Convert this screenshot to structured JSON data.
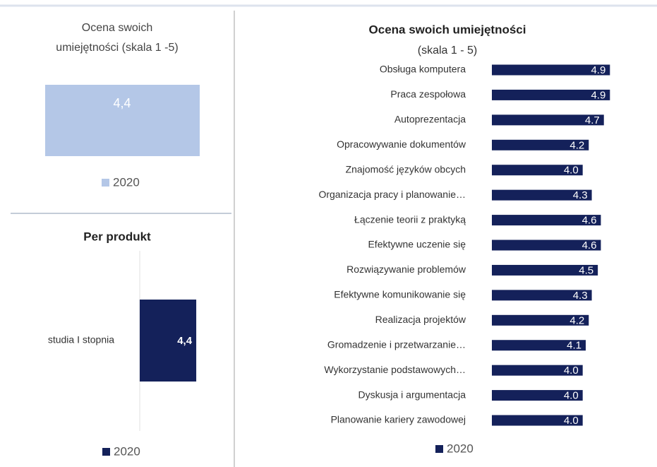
{
  "chart_data": [
    {
      "type": "card",
      "title": "Ocena swoich\numiejętności (skala 1   -5)",
      "series": [
        {
          "name": "2020",
          "color": "#b4c7e7",
          "values": [
            4.4
          ],
          "value_labels": [
            "4,4"
          ]
        }
      ]
    },
    {
      "type": "barh",
      "title": "Per produkt",
      "categories": [
        "studia I stopnia"
      ],
      "xlim": [
        0,
        5
      ],
      "series": [
        {
          "name": "2020",
          "color": "#14215a",
          "values": [
            4.4
          ],
          "value_labels": [
            "4,4"
          ]
        }
      ]
    },
    {
      "type": "barh",
      "title": "Ocena swoich umiejętności",
      "subtitle": "(skala 1 - 5)",
      "xlim": [
        1,
        5
      ],
      "categories": [
        "Obsługa komputera",
        "Praca zespołowa",
        "Autoprezentacja",
        "Opracowywanie dokumentów",
        "Znajomość języków obcych",
        "Organizacja pracy i planowanie…",
        "Łączenie teorii z praktyką",
        "Efektywne uczenie się",
        "Rozwiązywanie problemów",
        "Efektywne komunikowanie się",
        "Realizacja projektów",
        "Gromadzenie i przetwarzanie…",
        "Wykorzystanie podstawowych…",
        "Dyskusja i argumentacja",
        "Planowanie kariery zawodowej"
      ],
      "series": [
        {
          "name": "2020",
          "color": "#14215a",
          "values": [
            4.9,
            4.9,
            4.7,
            4.2,
            4.0,
            4.3,
            4.6,
            4.6,
            4.5,
            4.3,
            4.2,
            4.1,
            4.0,
            4.0,
            4.0
          ],
          "value_labels": [
            "4.9",
            "4.9",
            "4.7",
            "4.2",
            "4.0",
            "4.3",
            "4.6",
            "4.6",
            "4.5",
            "4.3",
            "4.2",
            "4.1",
            "4.0",
            "4.0",
            "4.0"
          ]
        }
      ]
    }
  ]
}
